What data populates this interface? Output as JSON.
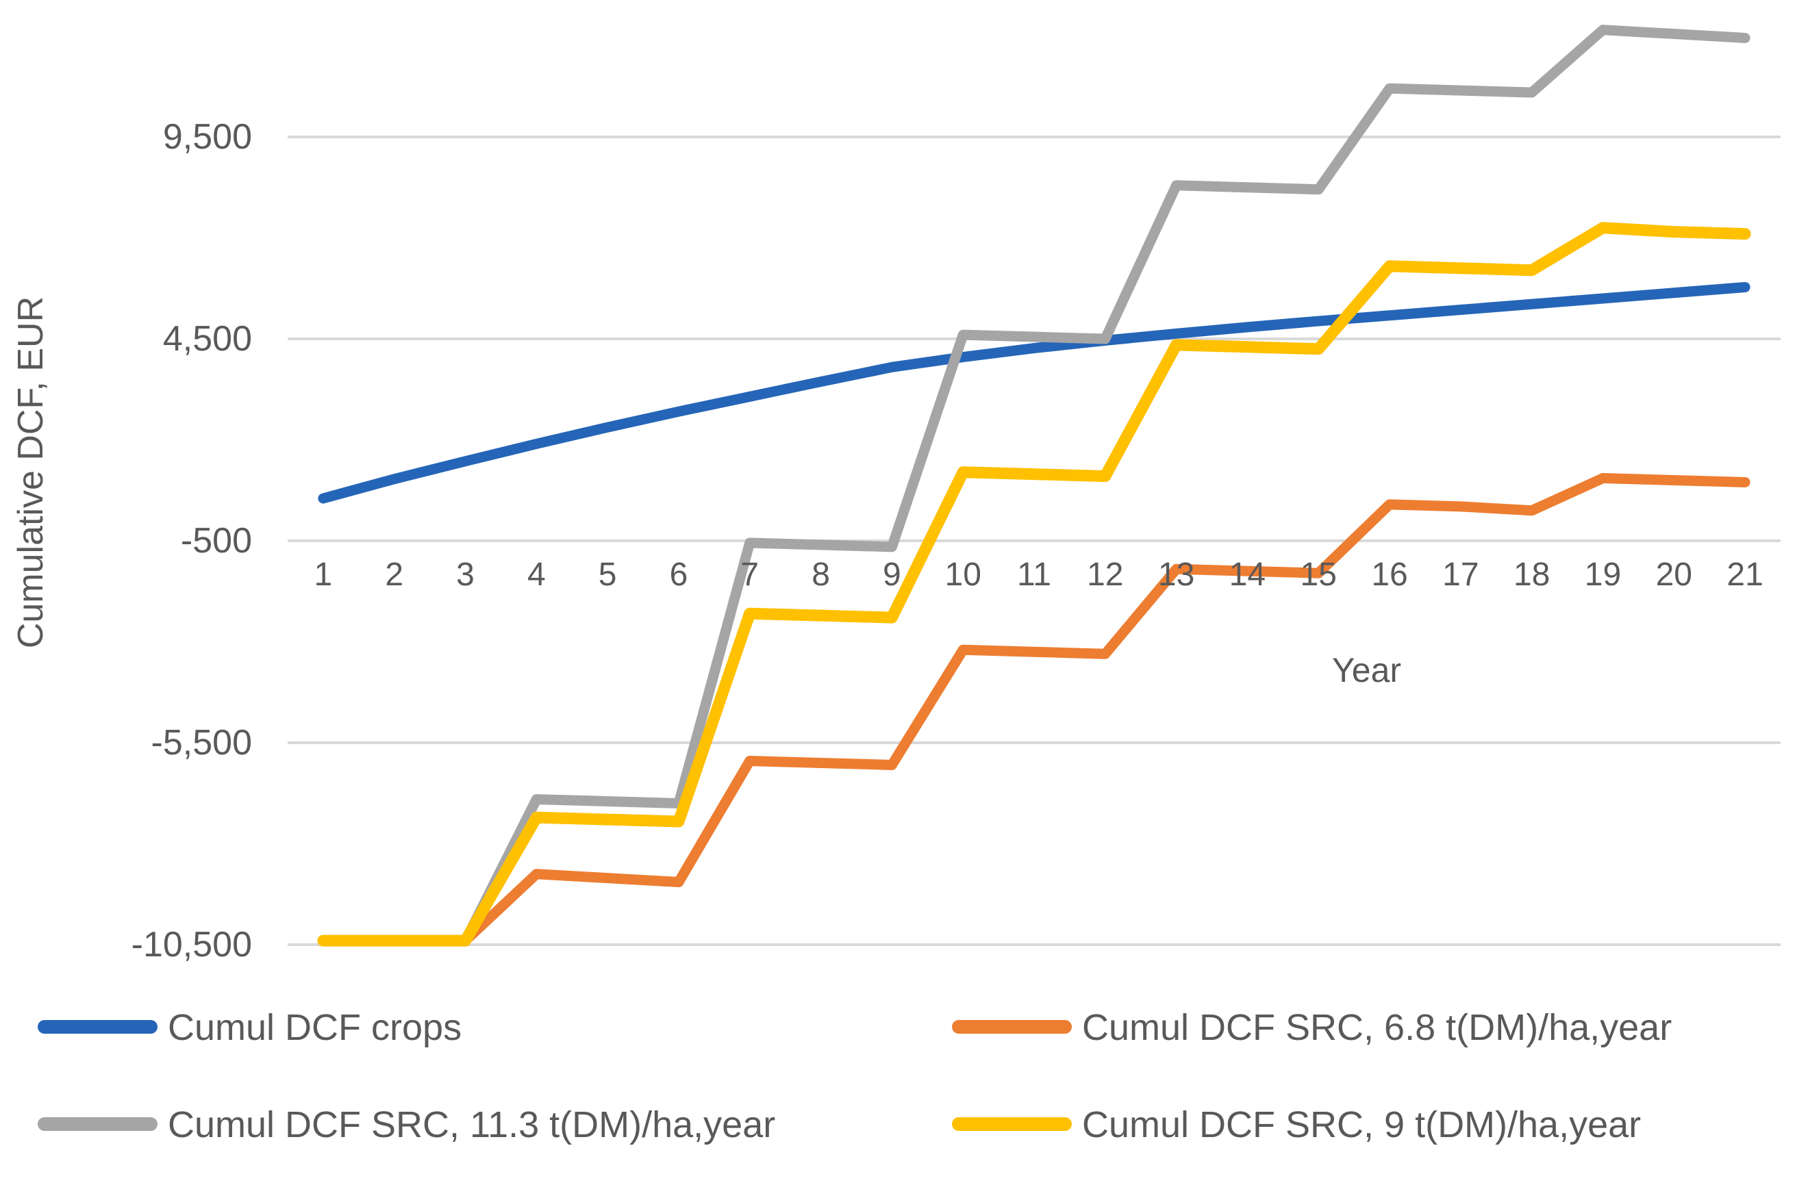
{
  "y_axis": {
    "title": "Cumulative DCF, EUR",
    "tick_labels": [
      "9,500",
      "4,500",
      "-500",
      "-5,500",
      "-10,500"
    ],
    "tick_values": [
      9500,
      4500,
      -500,
      -5500,
      -10500
    ]
  },
  "x_axis": {
    "title": "Year",
    "tick_labels": [
      "1",
      "2",
      "3",
      "4",
      "5",
      "6",
      "7",
      "8",
      "9",
      "10",
      "11",
      "12",
      "13",
      "14",
      "15",
      "16",
      "17",
      "18",
      "19",
      "20",
      "21"
    ]
  },
  "legend": [
    {
      "key": "crops",
      "label": "Cumul DCF crops",
      "color": "#2565B8"
    },
    {
      "key": "src-6-8",
      "label": "Cumul DCF SRC, 6.8 t(DM)/ha,year",
      "color": "#ED7D31"
    },
    {
      "key": "src-11-3",
      "label": "Cumul DCF SRC, 11.3 t(DM)/ha,year",
      "color": "#A5A5A5"
    },
    {
      "key": "src-9",
      "label": "Cumul DCF SRC, 9 t(DM)/ha,year",
      "color": "#FFC000"
    }
  ],
  "chart_data": {
    "type": "line",
    "title": "",
    "xlabel": "Year",
    "ylabel": "Cumulative DCF, EUR",
    "x": [
      1,
      2,
      3,
      4,
      5,
      6,
      7,
      8,
      9,
      10,
      11,
      12,
      13,
      14,
      15,
      16,
      17,
      18,
      19,
      20,
      21
    ],
    "ylim": [
      -10500,
      9500
    ],
    "ytick_step": 5000,
    "grid": "horizontal",
    "gridline_color": "#D9D9D9",
    "legend_position": "bottom-two-columns",
    "series": [
      {
        "name": "Cumul DCF crops",
        "key": "crops",
        "color": "#2565B8",
        "values": [
          550,
          1030,
          1470,
          1900,
          2310,
          2700,
          3070,
          3440,
          3800,
          4050,
          4270,
          4460,
          4630,
          4790,
          4940,
          5080,
          5220,
          5360,
          5500,
          5640,
          5780
        ]
      },
      {
        "name": "Cumul DCF SRC, 6.8 t(DM)/ha,year",
        "key": "src-6-8",
        "color": "#ED7D31",
        "values": [
          -10400,
          -10400,
          -10400,
          -8750,
          -8850,
          -8950,
          -5950,
          -6000,
          -6050,
          -3200,
          -3250,
          -3300,
          -1200,
          -1250,
          -1300,
          400,
          350,
          250,
          1050,
          1000,
          950
        ]
      },
      {
        "name": "Cumul DCF SRC, 11.3 t(DM)/ha,year",
        "key": "src-11-3",
        "color": "#A5A5A5",
        "values": [
          -10400,
          -10400,
          -10400,
          -6900,
          -6950,
          -7000,
          -550,
          -600,
          -650,
          4600,
          4550,
          4500,
          8300,
          8250,
          8200,
          10700,
          10650,
          10600,
          12150,
          12050,
          11950
        ]
      },
      {
        "name": "Cumul DCF SRC, 9 t(DM)/ha,year",
        "key": "src-9",
        "color": "#FFC000",
        "values": [
          -10400,
          -10400,
          -10400,
          -7350,
          -7400,
          -7450,
          -2300,
          -2350,
          -2400,
          1200,
          1150,
          1100,
          4350,
          4300,
          4250,
          6300,
          6250,
          6200,
          7250,
          7150,
          7100
        ]
      }
    ]
  }
}
